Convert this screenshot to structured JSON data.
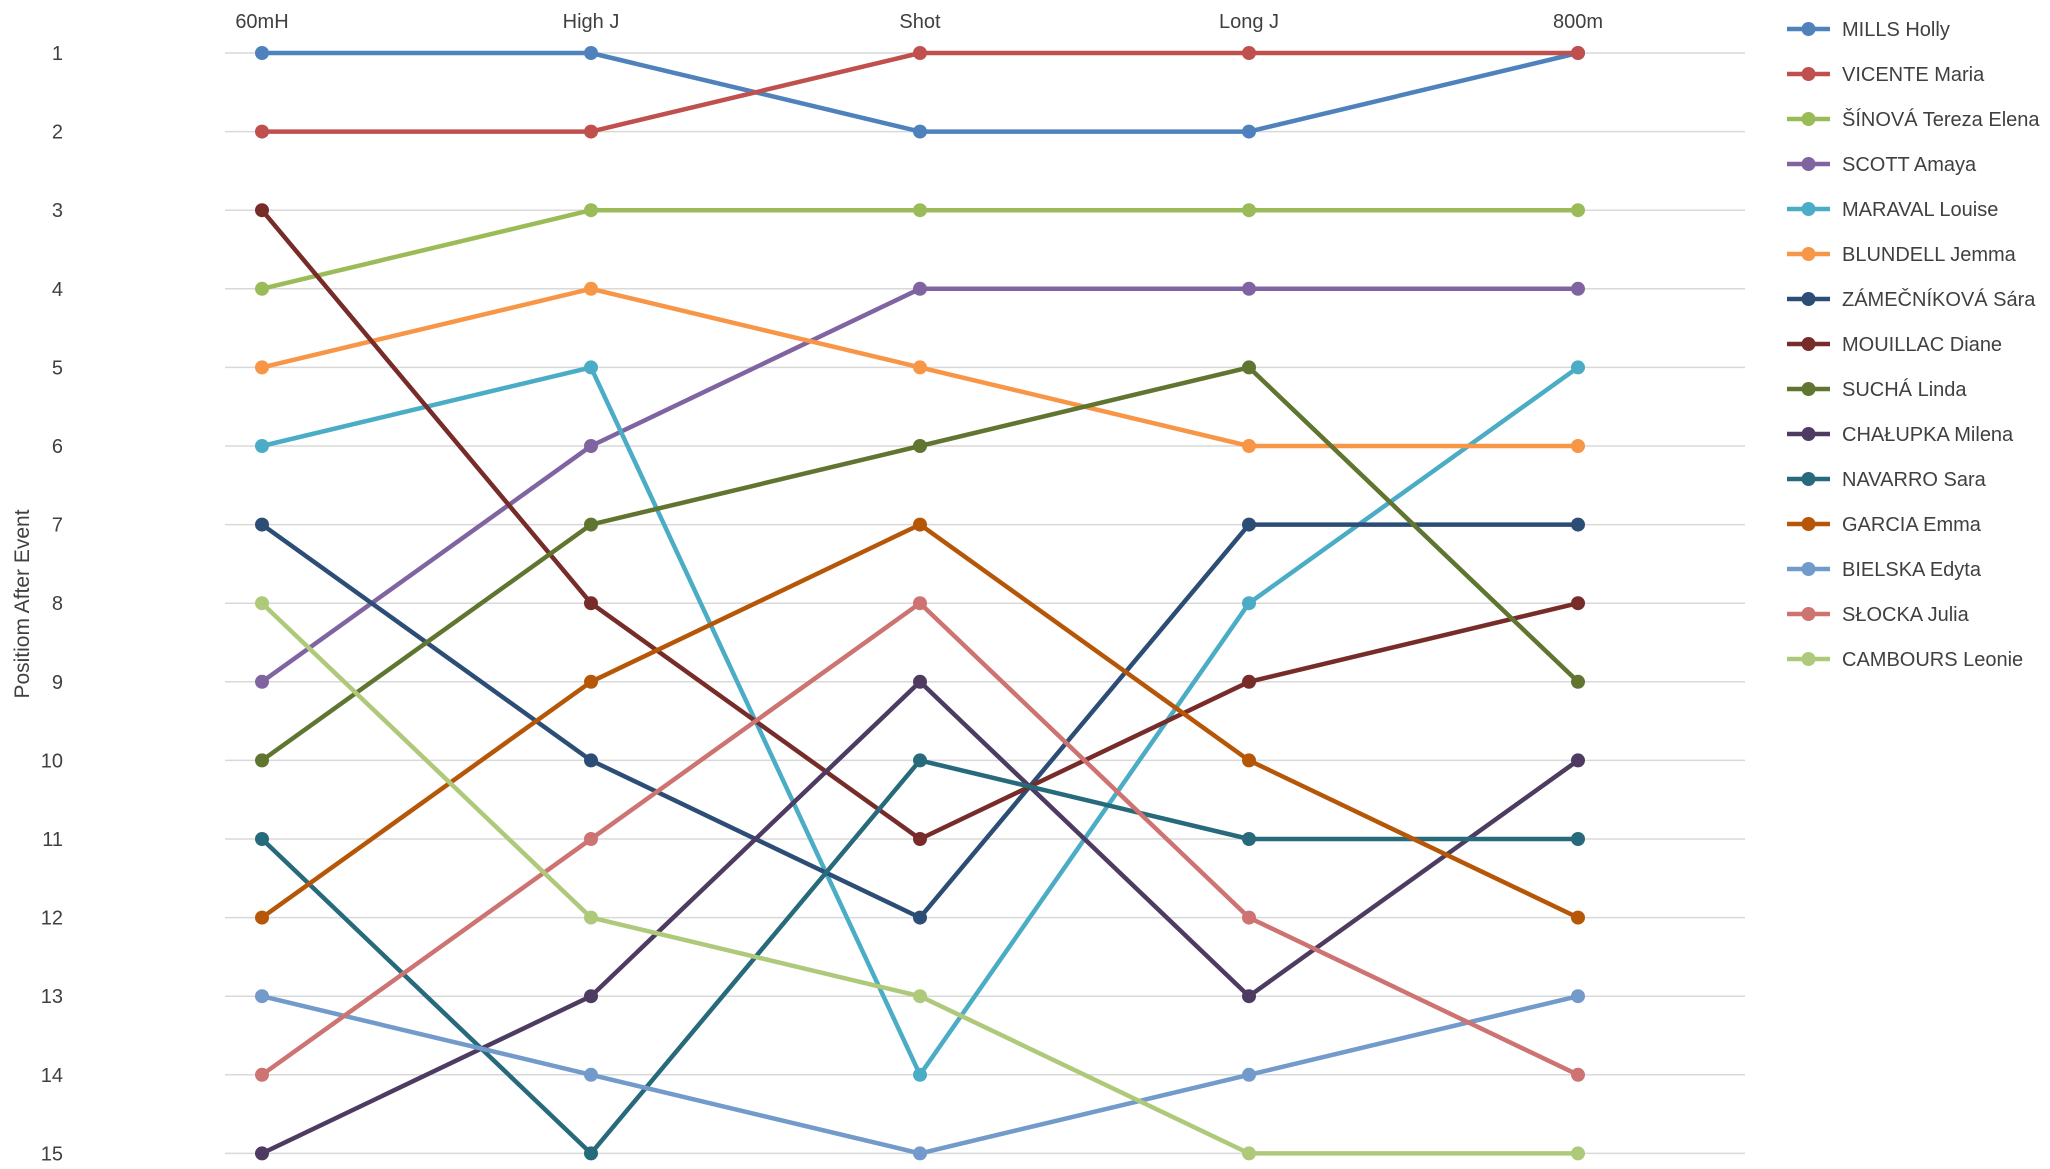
{
  "chart_data": {
    "type": "line",
    "title": "",
    "xlabel": "",
    "ylabel": "Positiom After Event",
    "ylim": [
      1,
      15
    ],
    "y_inverted": true,
    "y_ticks": [
      "1",
      "2",
      "3",
      "4",
      "5",
      "6",
      "7",
      "8",
      "9",
      "10",
      "11",
      "12",
      "13",
      "14",
      "15"
    ],
    "grid": true,
    "legend_position": "right",
    "categories": [
      "60mH",
      "High J",
      "Shot",
      "Long J",
      "800m"
    ],
    "series": [
      {
        "name": "MILLS Holly",
        "color": "#4f81bd",
        "values": [
          1,
          1,
          2,
          2,
          1
        ]
      },
      {
        "name": "VICENTE Maria",
        "color": "#c0504d",
        "values": [
          2,
          2,
          1,
          1,
          1
        ]
      },
      {
        "name": "ŠÍNOVÁ Tereza Elena",
        "color": "#9bbb59",
        "values": [
          4,
          3,
          3,
          3,
          3
        ]
      },
      {
        "name": "SCOTT Amaya",
        "color": "#8064a2",
        "values": [
          9,
          6,
          4,
          4,
          4
        ]
      },
      {
        "name": "MARAVAL Louise",
        "color": "#4bacc6",
        "values": [
          6,
          5,
          14,
          8,
          5
        ]
      },
      {
        "name": "BLUNDELL Jemma",
        "color": "#f79646",
        "values": [
          5,
          4,
          5,
          6,
          6
        ]
      },
      {
        "name": "ZÁMEČNÍKOVÁ Sára",
        "color": "#2c4d75",
        "values": [
          7,
          10,
          12,
          7,
          7
        ]
      },
      {
        "name": "MOUILLAC Diane",
        "color": "#772c2a",
        "values": [
          3,
          8,
          11,
          9,
          8
        ]
      },
      {
        "name": "SUCHÁ Linda",
        "color": "#5f7530",
        "values": [
          10,
          7,
          6,
          5,
          9
        ]
      },
      {
        "name": "CHAŁUPKA Milena",
        "color": "#4d3b62",
        "values": [
          15,
          13,
          9,
          13,
          10
        ]
      },
      {
        "name": "NAVARRO Sara",
        "color": "#276a7c",
        "values": [
          11,
          15,
          10,
          11,
          11
        ]
      },
      {
        "name": "GARCIA Emma",
        "color": "#b65708",
        "values": [
          12,
          9,
          7,
          10,
          12
        ]
      },
      {
        "name": "BIELSKA Edyta",
        "color": "#729aca",
        "values": [
          13,
          14,
          15,
          14,
          13
        ]
      },
      {
        "name": "SŁOCKA Julia",
        "color": "#cd7371",
        "values": [
          14,
          11,
          8,
          12,
          14
        ]
      },
      {
        "name": "CAMBOURS Leonie",
        "color": "#afc97a",
        "values": [
          8,
          12,
          13,
          15,
          15
        ]
      }
    ]
  }
}
